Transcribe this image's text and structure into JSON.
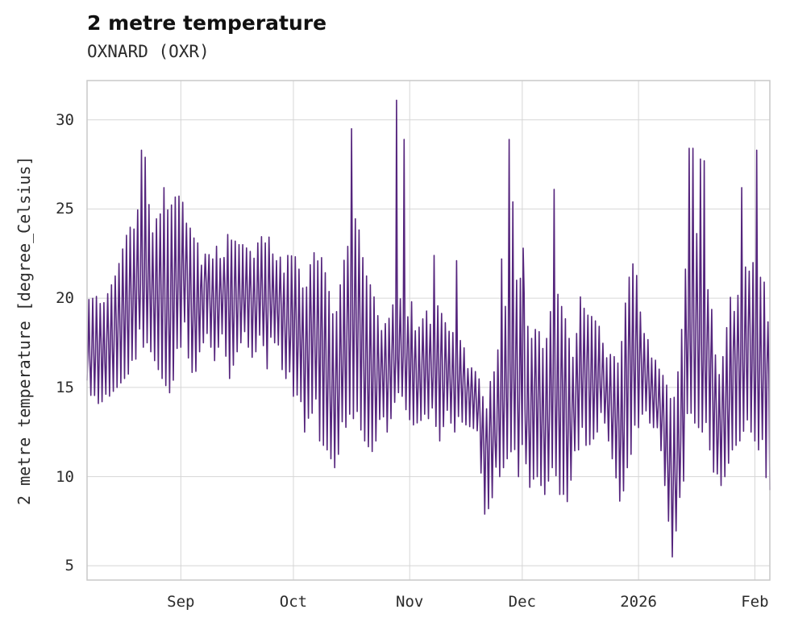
{
  "header": {
    "title": "2 metre temperature",
    "subtitle": "OXNARD (OXR)"
  },
  "chart_data": {
    "type": "line",
    "title": "2 metre temperature",
    "subtitle": "OXNARD (OXR)",
    "xlabel": "",
    "ylabel": "2 metre temperature [degree_Celsius]",
    "line_color": "#55257d",
    "line_width": 1.6,
    "grid": true,
    "grid_color": "#d6d6d6",
    "box_color": "#c9c9c9",
    "ylim": [
      4.2,
      32.2
    ],
    "xlim": [
      0,
      182
    ],
    "y_ticks": [
      5,
      10,
      15,
      20,
      25,
      30
    ],
    "x_ticks": [
      {
        "day": 25,
        "label": "Sep"
      },
      {
        "day": 55,
        "label": "Oct"
      },
      {
        "day": 86,
        "label": "Nov"
      },
      {
        "day": 116,
        "label": "Dec"
      },
      {
        "day": 147,
        "label": "2026"
      },
      {
        "day": 178,
        "label": "Feb"
      }
    ],
    "x_unit": "days from series start (early Aug 2025) to early Feb 2026",
    "samples_per_day": 4,
    "envelope_day_min_max": [
      [
        0,
        14.5,
        19.8
      ],
      [
        2,
        14.0,
        20.3
      ],
      [
        4,
        14.2,
        19.5
      ],
      [
        6,
        13.8,
        20.5
      ],
      [
        8,
        15.0,
        21.5
      ],
      [
        10,
        15.5,
        23.3
      ],
      [
        12,
        16.0,
        24.2
      ],
      [
        14,
        17.0,
        25.2
      ],
      [
        16,
        17.5,
        25.5
      ],
      [
        18,
        16.5,
        24.5
      ],
      [
        20,
        15.5,
        24.8
      ],
      [
        22,
        14.7,
        25.0
      ],
      [
        24,
        16.0,
        25.9
      ],
      [
        26,
        18.5,
        25.2
      ],
      [
        28,
        14.8,
        23.5
      ],
      [
        30,
        17.0,
        23.0
      ],
      [
        32,
        18.0,
        22.8
      ],
      [
        34,
        16.5,
        23.0
      ],
      [
        36,
        18.0,
        22.9
      ],
      [
        38,
        15.5,
        23.8
      ],
      [
        40,
        17.0,
        23.0
      ],
      [
        42,
        18.0,
        23.0
      ],
      [
        44,
        16.5,
        22.5
      ],
      [
        46,
        17.5,
        23.3
      ],
      [
        48,
        16.0,
        23.9
      ],
      [
        50,
        17.5,
        22.0
      ],
      [
        52,
        16.0,
        22.4
      ],
      [
        54,
        15.0,
        22.4
      ],
      [
        56,
        14.0,
        22.3
      ],
      [
        58,
        12.5,
        20.0
      ],
      [
        60,
        13.5,
        22.5
      ],
      [
        62,
        12.0,
        22.7
      ],
      [
        64,
        11.5,
        21.0
      ],
      [
        66,
        10.5,
        18.5
      ],
      [
        68,
        12.0,
        21.5
      ],
      [
        70,
        13.5,
        24.0
      ],
      [
        72,
        13.0,
        24.6
      ],
      [
        74,
        12.0,
        21.5
      ],
      [
        76,
        11.0,
        20.5
      ],
      [
        78,
        13.0,
        18.8
      ],
      [
        80,
        12.5,
        18.5
      ],
      [
        82,
        14.0,
        20.0
      ],
      [
        84,
        14.5,
        20.0
      ],
      [
        86,
        13.0,
        20.4
      ],
      [
        88,
        12.8,
        18.0
      ],
      [
        90,
        13.5,
        19.5
      ],
      [
        92,
        13.0,
        19.5
      ],
      [
        94,
        12.0,
        19.6
      ],
      [
        96,
        13.5,
        18.3
      ],
      [
        98,
        12.5,
        18.0
      ],
      [
        100,
        13.0,
        17.5
      ],
      [
        102,
        12.8,
        16.5
      ],
      [
        104,
        12.5,
        16.0
      ],
      [
        106,
        7.9,
        14.5
      ],
      [
        108,
        8.5,
        16.0
      ],
      [
        110,
        10.0,
        18.0
      ],
      [
        112,
        11.0,
        21.0
      ],
      [
        114,
        10.5,
        21.2
      ],
      [
        116,
        9.5,
        21.2
      ],
      [
        118,
        9.4,
        17.5
      ],
      [
        120,
        10.0,
        18.5
      ],
      [
        122,
        9.0,
        17.0
      ],
      [
        124,
        10.5,
        20.0
      ],
      [
        126,
        9.0,
        21.5
      ],
      [
        128,
        8.6,
        18.0
      ],
      [
        130,
        11.0,
        17.0
      ],
      [
        132,
        12.0,
        21.1
      ],
      [
        134,
        11.5,
        19.0
      ],
      [
        136,
        12.5,
        18.9
      ],
      [
        138,
        13.0,
        17.0
      ],
      [
        140,
        11.0,
        16.8
      ],
      [
        142,
        7.9,
        16.5
      ],
      [
        144,
        10.5,
        20.8
      ],
      [
        146,
        12.0,
        22.3
      ],
      [
        148,
        13.5,
        18.2
      ],
      [
        150,
        13.0,
        17.5
      ],
      [
        152,
        12.5,
        16.2
      ],
      [
        154,
        9.5,
        15.5
      ],
      [
        156,
        5.5,
        14.0
      ],
      [
        158,
        7.5,
        16.5
      ],
      [
        160,
        12.0,
        23.5
      ],
      [
        162,
        13.0,
        24.0
      ],
      [
        164,
        12.5,
        22.5
      ],
      [
        166,
        11.5,
        20.5
      ],
      [
        168,
        9.0,
        16.0
      ],
      [
        170,
        10.0,
        17.5
      ],
      [
        172,
        11.5,
        20.9
      ],
      [
        174,
        12.0,
        21.0
      ],
      [
        176,
        13.0,
        22.0
      ],
      [
        178,
        12.0,
        22.0
      ],
      [
        180,
        11.0,
        21.0
      ],
      [
        182,
        8.9,
        20.6
      ]
    ],
    "spike_day_value": [
      [
        14.4,
        28.3
      ],
      [
        15.5,
        27.9
      ],
      [
        20.4,
        26.2
      ],
      [
        70.5,
        29.5
      ],
      [
        82.6,
        31.1
      ],
      [
        84.4,
        28.9
      ],
      [
        92.5,
        22.4
      ],
      [
        98.4,
        22.1
      ],
      [
        110.5,
        22.2
      ],
      [
        112.5,
        28.9
      ],
      [
        113.4,
        25.4
      ],
      [
        116.3,
        22.8
      ],
      [
        124.4,
        26.1
      ],
      [
        160.4,
        28.4
      ],
      [
        161.5,
        28.4
      ],
      [
        163.4,
        27.8
      ],
      [
        164.5,
        27.7
      ],
      [
        174.5,
        26.2
      ],
      [
        178.4,
        28.3
      ]
    ]
  }
}
